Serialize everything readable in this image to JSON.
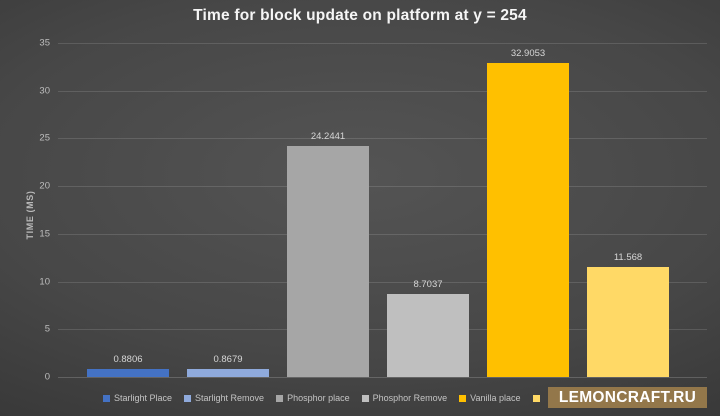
{
  "title": "Time for block update on platform at y = 254",
  "watermark_text": "LEMONCRAFT.RU",
  "colors": {
    "background_center": "#545454",
    "background_edge": "#232323",
    "watermark_bg": "#93774a",
    "title_text": "#f5f5f5"
  },
  "chart_data": {
    "type": "bar",
    "title": "Time for block update on platform at y = 254",
    "xlabel": "",
    "ylabel": "TIME (MS)",
    "ylim": [
      0,
      35
    ],
    "yticks": [
      0,
      5,
      10,
      15,
      20,
      25,
      30,
      35
    ],
    "grid": true,
    "legend_position": "bottom",
    "categories": [
      "Starlight Place",
      "Starlight Remove",
      "Phosphor place",
      "Phosphor Remove",
      "Vanilla place",
      ""
    ],
    "values": [
      0.8806,
      0.8679,
      24.2441,
      8.7037,
      32.9053,
      11.568
    ],
    "value_labels": [
      "0.8806",
      "0.8679",
      "24.2441",
      "8.7037",
      "32.9053",
      "11.568"
    ],
    "bar_colors": [
      "#4472C4",
      "#8FAADC",
      "#A6A6A6",
      "#BFBFBF",
      "#FFC000",
      "#FFD966"
    ],
    "legend": [
      {
        "label": "Starlight Place",
        "color": "#4472C4"
      },
      {
        "label": "Starlight Remove",
        "color": "#8FAADC"
      },
      {
        "label": "Phosphor place",
        "color": "#A6A6A6"
      },
      {
        "label": "Phosphor Remove",
        "color": "#BFBFBF"
      },
      {
        "label": "Vanilla place",
        "color": "#FFC000"
      },
      {
        "label": "",
        "color": "#FFD966"
      }
    ]
  }
}
